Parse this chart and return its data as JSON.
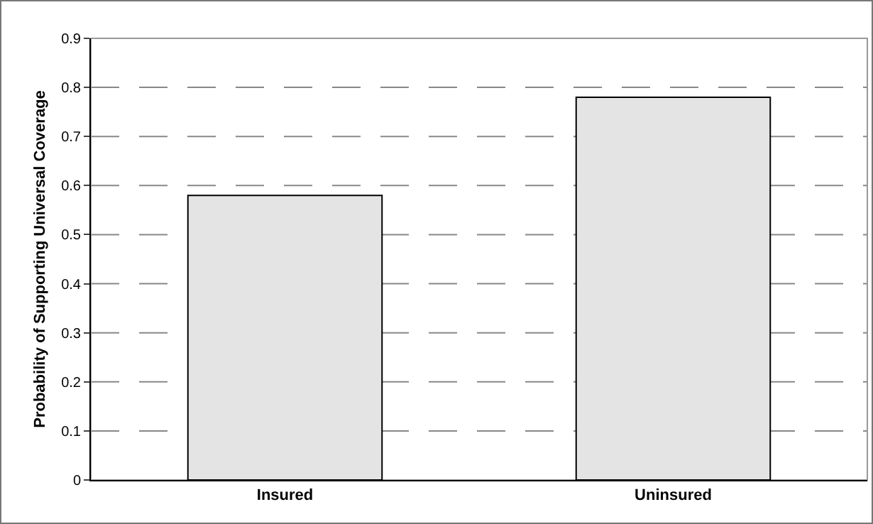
{
  "chart_data": {
    "type": "bar",
    "ylabel": "Probability of Supporting Universal Coverage",
    "categories": [
      "Insured",
      "Uninsured"
    ],
    "values": [
      0.58,
      0.78
    ],
    "color": "#e4e4e4",
    "ylim": [
      0,
      0.9
    ],
    "yticks": [
      0,
      0.1,
      0.2,
      0.3,
      0.4,
      0.5,
      0.6,
      0.7,
      0.8,
      0.9
    ],
    "grid": true,
    "legend": false
  }
}
